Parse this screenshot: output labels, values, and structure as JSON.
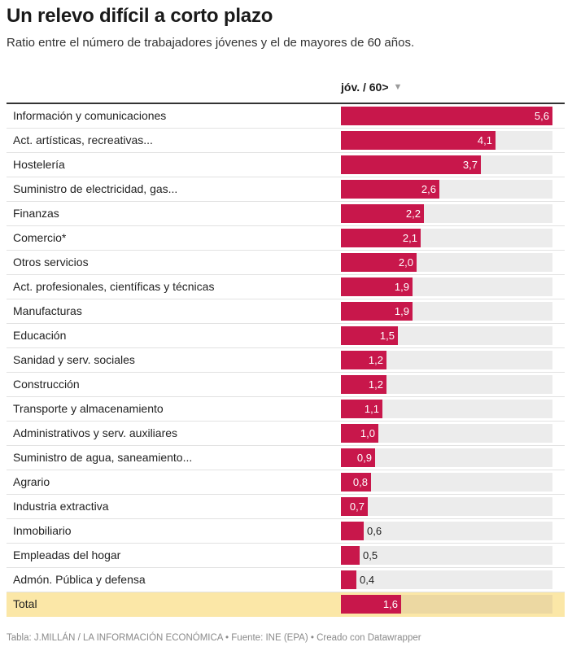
{
  "title": "Un relevo difícil a corto plazo",
  "subtitle": "Ratio entre el número de trabajadores jóvenes y el de mayores de 60 años.",
  "column_header": "jóv. / 60>",
  "sort_icon": "triangle-down-icon",
  "footer": {
    "table_credit": "Tabla: J.MILLÁN / LA INFORMACIÓN ECONÓMICA",
    "source": "• Fuente: INE (EPA)",
    "created": "• Creado con Datawrapper"
  },
  "colors": {
    "bar": "#c8174b",
    "track": "#ececec",
    "total_row": "#fbe7a7",
    "total_track": "#ecd8a2"
  },
  "chart_data": {
    "type": "bar",
    "orientation": "horizontal",
    "title": "Un relevo difícil a corto plazo",
    "subtitle": "Ratio entre el número de trabajadores jóvenes y el de mayores de 60 años.",
    "value_label": "jóv. / 60>",
    "xlim": [
      0,
      5.6
    ],
    "categories": [
      "Información y comunicaciones",
      "Act. artísticas, recreativas...",
      "Hostelería",
      "Suministro de electricidad, gas...",
      "Finanzas",
      "Comercio*",
      "Otros servicios",
      "Act. profesionales, científicas y técnicas",
      "Manufacturas",
      "Educación",
      "Sanidad y serv. sociales",
      "Construcción",
      "Transporte y almacenamiento",
      "Administrativos y serv. auxiliares",
      "Suministro de agua, saneamiento...",
      "Agrario",
      "Industria extractiva",
      "Inmobiliario",
      "Empleadas del hogar",
      "Admón. Pública y defensa",
      "Total"
    ],
    "values": [
      5.6,
      4.1,
      3.7,
      2.6,
      2.2,
      2.1,
      2.0,
      1.9,
      1.9,
      1.5,
      1.2,
      1.2,
      1.1,
      1.0,
      0.9,
      0.8,
      0.7,
      0.6,
      0.5,
      0.4,
      1.6
    ],
    "value_labels": [
      "5,6",
      "4,1",
      "3,7",
      "2,6",
      "2,2",
      "2,1",
      "2,0",
      "1,9",
      "1,9",
      "1,5",
      "1,2",
      "1,2",
      "1,1",
      "1,0",
      "0,9",
      "0,8",
      "0,7",
      "0,6",
      "0,5",
      "0,4",
      "1,6"
    ],
    "highlight_category": "Total"
  }
}
